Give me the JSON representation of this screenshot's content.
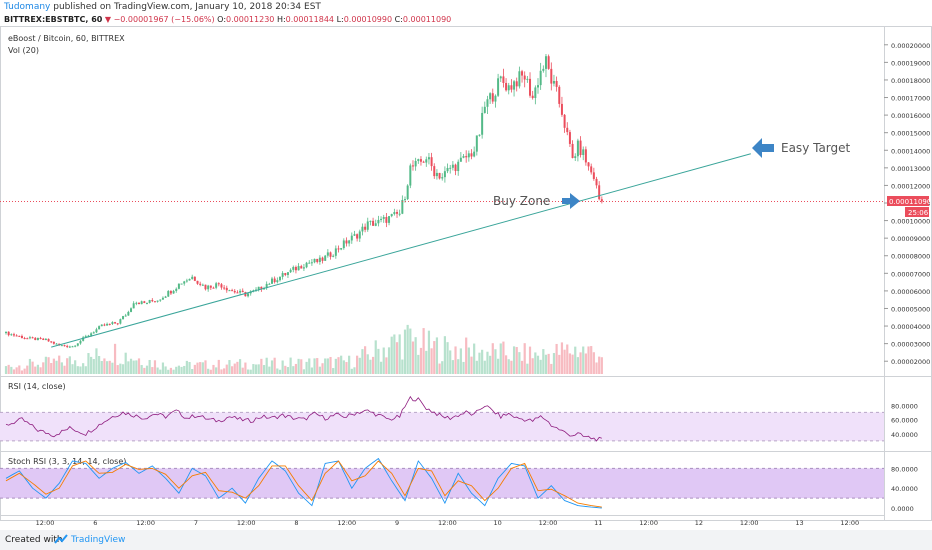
{
  "header": {
    "author": "Tudomany",
    "published_text": " published on TradingView.com, January 10, 2018 20:34 EST",
    "symbol_line": "BITTREX:EBSTBTC, 60",
    "change_arrow": "▼",
    "change": "−0.00001967 (−15.06%)",
    "o_label": "O:",
    "o_value": "0.00011230",
    "h_label": "H:",
    "h_value": "0.00011844",
    "l_label": "L:",
    "l_value": "0.00010990",
    "c_label": "C:",
    "c_value": "0.00011090"
  },
  "footer": {
    "created_with": "Created with",
    "brand": "TradingView"
  },
  "colors": {
    "up": "#53b987",
    "down": "#eb4d5c",
    "vol_up": "#b7e1cd",
    "vol_down": "#f7bbc1",
    "trendline": "#3aa59a",
    "arrow": "#3d85c6",
    "rsi_line": "#8e1c7f",
    "rsi_band": "#f0e1fa",
    "stoch_k": "#2196f3",
    "stoch_d": "#f57c00",
    "stoch_band": "#e0c8f5"
  },
  "chart_data": [
    {
      "type": "candlestick",
      "title": "eBoost / Bitcoin, 60, BITTREX",
      "indicator_label": "Vol (20)",
      "ylim": [
        1.5e-05,
        0.000205
      ],
      "y_ticks": [
        "0.00020000",
        "0.00019000",
        "0.00018000",
        "0.00017000",
        "0.00016000",
        "0.00015000",
        "0.00014000",
        "0.00013000",
        "0.00012000",
        "0.00011000",
        "0.00010000",
        "0.00009000",
        "0.00008000",
        "0.00007000",
        "0.00006000",
        "0.00005000",
        "0.00004000",
        "0.00003000",
        "0.00002000"
      ],
      "last_price": "0.00011090",
      "countdown": "25:06",
      "x_ticks": [
        "12:00",
        "6",
        "12:00",
        "7",
        "12:00",
        "8",
        "12:00",
        "9",
        "12:00",
        "10",
        "12:00",
        "11",
        "12:00",
        "12",
        "12:00",
        "13",
        "12:00"
      ],
      "price_path": [
        [
          0,
          3.6e-05
        ],
        [
          8,
          3.3e-05
        ],
        [
          15,
          3.2e-05
        ],
        [
          20,
          2.9e-05
        ],
        [
          25,
          2.85e-05
        ],
        [
          32,
          3.6e-05
        ],
        [
          36,
          4e-05
        ],
        [
          42,
          4.2e-05
        ],
        [
          46,
          4.8e-05
        ],
        [
          48,
          5.4e-05
        ],
        [
          52,
          5.3e-05
        ],
        [
          57,
          5.5e-05
        ],
        [
          62,
          6e-05
        ],
        [
          66,
          6.5e-05
        ],
        [
          70,
          6.8e-05
        ],
        [
          75,
          6.2e-05
        ],
        [
          80,
          6.4e-05
        ],
        [
          85,
          6e-05
        ],
        [
          90,
          5.8e-05
        ],
        [
          94,
          6e-05
        ],
        [
          98,
          6.4e-05
        ],
        [
          103,
          6.8e-05
        ],
        [
          108,
          7.2e-05
        ],
        [
          113,
          7.6e-05
        ],
        [
          118,
          7.7e-05
        ],
        [
          123,
          8.2e-05
        ],
        [
          128,
          8.8e-05
        ],
        [
          132,
          9.2e-05
        ],
        [
          136,
          9.8e-05
        ],
        [
          140,
          9.9e-05
        ],
        [
          145,
          0.000102
        ],
        [
          148,
          0.000104
        ],
        [
          150,
          0.000115
        ],
        [
          152,
          0.00013
        ],
        [
          155,
          0.000132
        ],
        [
          158,
          0.000136
        ],
        [
          161,
          0.000128
        ],
        [
          164,
          0.000125
        ],
        [
          167,
          0.00013
        ],
        [
          170,
          0.000132
        ],
        [
          173,
          0.000136
        ],
        [
          176,
          0.00014
        ],
        [
          178,
          0.00015
        ],
        [
          180,
          0.000165
        ],
        [
          183,
          0.000172
        ],
        [
          186,
          0.00018
        ],
        [
          189,
          0.000176
        ],
        [
          192,
          0.00018
        ],
        [
          195,
          0.000182
        ],
        [
          198,
          0.00017
        ],
        [
          201,
          0.000185
        ],
        [
          203,
          0.00019
        ],
        [
          205,
          0.00018
        ],
        [
          207,
          0.000172
        ],
        [
          209,
          0.000162
        ],
        [
          211,
          0.000148
        ],
        [
          213,
          0.000135
        ],
        [
          215,
          0.000142
        ],
        [
          217,
          0.000138
        ],
        [
          219,
          0.00013
        ],
        [
          221,
          0.000125
        ],
        [
          223,
          0.0001123
        ],
        [
          224,
          0.0001109
        ]
      ],
      "volume_profile": [
        [
          0,
          0.18
        ],
        [
          30,
          0.35
        ],
        [
          40,
          0.55
        ],
        [
          60,
          0.2
        ],
        [
          100,
          0.25
        ],
        [
          130,
          0.3
        ],
        [
          150,
          0.85
        ],
        [
          160,
          0.65
        ],
        [
          175,
          0.55
        ],
        [
          200,
          0.45
        ],
        [
          215,
          0.6
        ],
        [
          224,
          0.5
        ]
      ],
      "volume_scale": "volume levels are relative 0–1; the original prints no volume numbers",
      "annotations": [
        {
          "label": "Easy Target",
          "type": "arrow-left"
        },
        {
          "label": "Buy Zone",
          "type": "arrow-right"
        }
      ],
      "trendline": {
        "from": [
          17,
          2.8e-05
        ],
        "to": [
          280,
          0.000138
        ]
      }
    },
    {
      "type": "line",
      "title": "RSI (14, close)",
      "ylim": [
        20,
        100
      ],
      "y_ticks": [
        "80.0000",
        "60.0000",
        "40.0000"
      ],
      "band": [
        30,
        70
      ],
      "values": [
        [
          0,
          52
        ],
        [
          6,
          60
        ],
        [
          12,
          45
        ],
        [
          18,
          38
        ],
        [
          24,
          48
        ],
        [
          30,
          40
        ],
        [
          36,
          55
        ],
        [
          40,
          64
        ],
        [
          44,
          70
        ],
        [
          48,
          66
        ],
        [
          52,
          62
        ],
        [
          56,
          68
        ],
        [
          60,
          64
        ],
        [
          64,
          72
        ],
        [
          68,
          62
        ],
        [
          72,
          66
        ],
        [
          76,
          60
        ],
        [
          80,
          58
        ],
        [
          84,
          64
        ],
        [
          88,
          60
        ],
        [
          92,
          58
        ],
        [
          96,
          64
        ],
        [
          100,
          62
        ],
        [
          104,
          66
        ],
        [
          108,
          62
        ],
        [
          112,
          60
        ],
        [
          116,
          68
        ],
        [
          120,
          62
        ],
        [
          124,
          66
        ],
        [
          128,
          64
        ],
        [
          132,
          70
        ],
        [
          136,
          72
        ],
        [
          140,
          66
        ],
        [
          144,
          60
        ],
        [
          148,
          64
        ],
        [
          150,
          78
        ],
        [
          152,
          90
        ],
        [
          155,
          88
        ],
        [
          158,
          76
        ],
        [
          161,
          70
        ],
        [
          164,
          64
        ],
        [
          167,
          62
        ],
        [
          170,
          66
        ],
        [
          173,
          70
        ],
        [
          176,
          66
        ],
        [
          178,
          74
        ],
        [
          180,
          80
        ],
        [
          183,
          72
        ],
        [
          186,
          64
        ],
        [
          189,
          68
        ],
        [
          192,
          62
        ],
        [
          195,
          60
        ],
        [
          198,
          58
        ],
        [
          201,
          64
        ],
        [
          203,
          60
        ],
        [
          205,
          52
        ],
        [
          207,
          48
        ],
        [
          209,
          44
        ],
        [
          211,
          40
        ],
        [
          213,
          38
        ],
        [
          215,
          40
        ],
        [
          217,
          36
        ],
        [
          219,
          35
        ],
        [
          221,
          33
        ],
        [
          223,
          32
        ],
        [
          224,
          31
        ]
      ]
    },
    {
      "type": "line",
      "title": "Stoch RSI (3, 3, 14, 14, close)",
      "ylim": [
        -10,
        105
      ],
      "y_ticks": [
        "80.0000",
        "40.0000",
        "0.0000"
      ],
      "band": [
        20,
        80
      ],
      "series": [
        {
          "values": [
            [
              0,
              60
            ],
            [
              5,
              75
            ],
            [
              10,
              40
            ],
            [
              15,
              20
            ],
            [
              20,
              50
            ],
            [
              25,
              95
            ],
            [
              30,
              90
            ],
            [
              35,
              60
            ],
            [
              40,
              80
            ],
            [
              45,
              92
            ],
            [
              50,
              70
            ],
            [
              55,
              85
            ],
            [
              60,
              60
            ],
            [
              65,
              30
            ],
            [
              70,
              80
            ],
            [
              75,
              65
            ],
            [
              80,
              20
            ],
            [
              85,
              40
            ],
            [
              90,
              10
            ],
            [
              95,
              60
            ],
            [
              100,
              95
            ],
            [
              105,
              75
            ],
            [
              110,
              30
            ],
            [
              115,
              5
            ],
            [
              120,
              90
            ],
            [
              125,
              95
            ],
            [
              130,
              40
            ],
            [
              135,
              80
            ],
            [
              140,
              100
            ],
            [
              145,
              55
            ],
            [
              150,
              15
            ],
            [
              155,
              95
            ],
            [
              160,
              60
            ],
            [
              165,
              10
            ],
            [
              170,
              70
            ],
            [
              175,
              30
            ],
            [
              180,
              5
            ],
            [
              185,
              60
            ],
            [
              190,
              90
            ],
            [
              195,
              85
            ],
            [
              200,
              20
            ],
            [
              205,
              45
            ],
            [
              210,
              15
            ],
            [
              215,
              5
            ],
            [
              220,
              2
            ],
            [
              224,
              0
            ]
          ]
        },
        {
          "values": [
            [
              0,
              55
            ],
            [
              5,
              70
            ],
            [
              10,
              50
            ],
            [
              15,
              28
            ],
            [
              20,
              40
            ],
            [
              25,
              85
            ],
            [
              30,
              95
            ],
            [
              35,
              70
            ],
            [
              40,
              72
            ],
            [
              45,
              88
            ],
            [
              50,
              78
            ],
            [
              55,
              80
            ],
            [
              60,
              68
            ],
            [
              65,
              40
            ],
            [
              70,
              65
            ],
            [
              75,
              72
            ],
            [
              80,
              35
            ],
            [
              85,
              32
            ],
            [
              90,
              20
            ],
            [
              95,
              45
            ],
            [
              100,
              85
            ],
            [
              105,
              85
            ],
            [
              110,
              45
            ],
            [
              115,
              15
            ],
            [
              120,
              70
            ],
            [
              125,
              95
            ],
            [
              130,
              55
            ],
            [
              135,
              65
            ],
            [
              140,
              95
            ],
            [
              145,
              70
            ],
            [
              150,
              25
            ],
            [
              155,
              80
            ],
            [
              160,
              75
            ],
            [
              165,
              25
            ],
            [
              170,
              55
            ],
            [
              175,
              45
            ],
            [
              180,
              15
            ],
            [
              185,
              40
            ],
            [
              190,
              80
            ],
            [
              195,
              90
            ],
            [
              200,
              35
            ],
            [
              205,
              38
            ],
            [
              210,
              25
            ],
            [
              215,
              10
            ],
            [
              220,
              5
            ],
            [
              224,
              2
            ]
          ]
        }
      ]
    }
  ]
}
